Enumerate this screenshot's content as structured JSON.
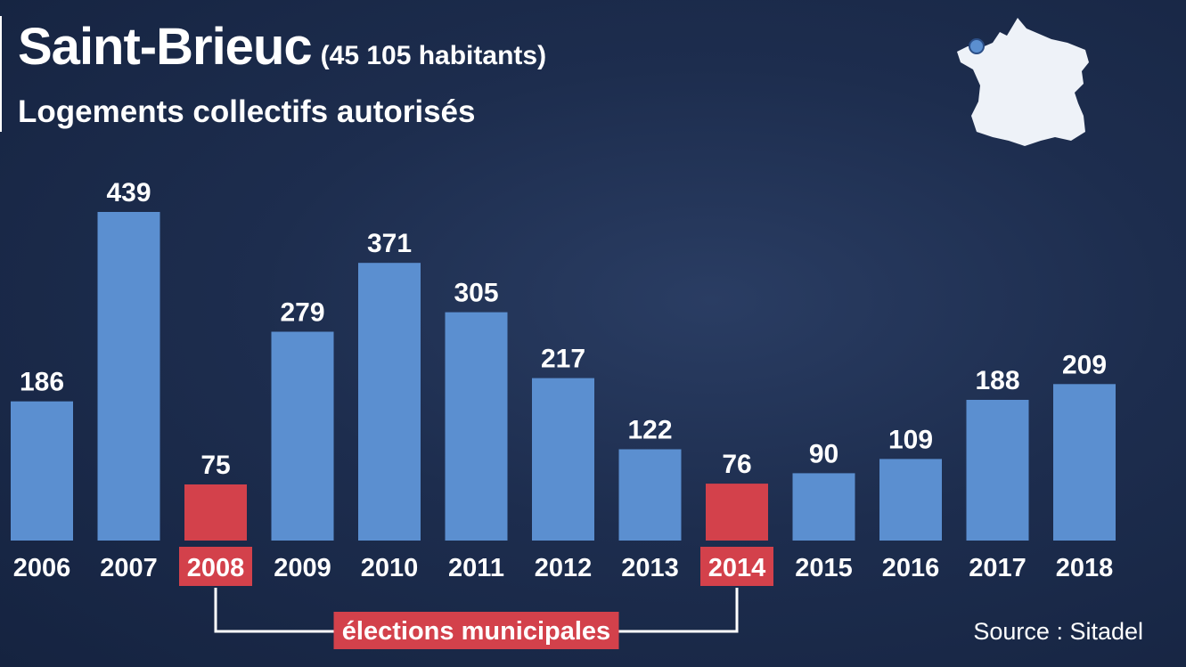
{
  "header": {
    "title": "Saint-Brieuc",
    "population": "(45 105 habitants)",
    "subtitle": "Logements collectifs autorisés"
  },
  "annotation": {
    "label": "élections municipales",
    "years": [
      "2008",
      "2014"
    ]
  },
  "source": "Source : Sitadel",
  "map": {
    "icon": "france-map-icon",
    "marker": "saint-brieuc-location-marker"
  },
  "colors": {
    "background": "#1b2a49",
    "bar": "#5b8fd0",
    "highlight": "#d3414b",
    "text": "#ffffff"
  },
  "chart_data": {
    "type": "bar",
    "title": "Logements collectifs autorisés",
    "xlabel": "",
    "ylabel": "",
    "categories": [
      "2006",
      "2007",
      "2008",
      "2009",
      "2010",
      "2011",
      "2012",
      "2013",
      "2014",
      "2015",
      "2016",
      "2017",
      "2018"
    ],
    "values": [
      186,
      439,
      75,
      279,
      371,
      305,
      217,
      122,
      76,
      90,
      109,
      188,
      209
    ],
    "highlighted": [
      "2008",
      "2014"
    ],
    "ylim": [
      0,
      439
    ],
    "grid": false,
    "data_labels": true
  }
}
